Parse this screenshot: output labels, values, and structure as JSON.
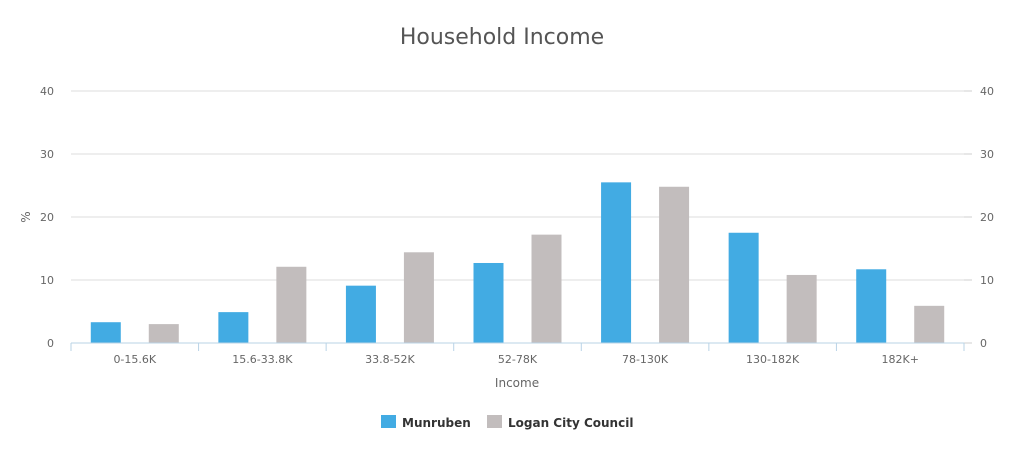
{
  "chart_data": {
    "type": "bar",
    "title": "Household Income",
    "xlabel": "Income",
    "ylabel": "%",
    "ylim": [
      0,
      40
    ],
    "yticks": [
      0,
      10,
      20,
      30,
      40
    ],
    "categories": [
      "0-15.6K",
      "15.6-33.8K",
      "33.8-52K",
      "52-78K",
      "78-130K",
      "130-182K",
      "182K+"
    ],
    "series": [
      {
        "name": "Munruben",
        "color": "#42abe3",
        "values": [
          3.3,
          4.9,
          9.1,
          12.7,
          25.5,
          17.5,
          11.7
        ]
      },
      {
        "name": "Logan City Council",
        "color": "#c2bdbd",
        "values": [
          3.0,
          12.1,
          14.4,
          17.2,
          24.8,
          10.8,
          5.9
        ]
      }
    ],
    "grid": true,
    "legend_position": "bottom-center",
    "secondary_y_axis": true
  }
}
